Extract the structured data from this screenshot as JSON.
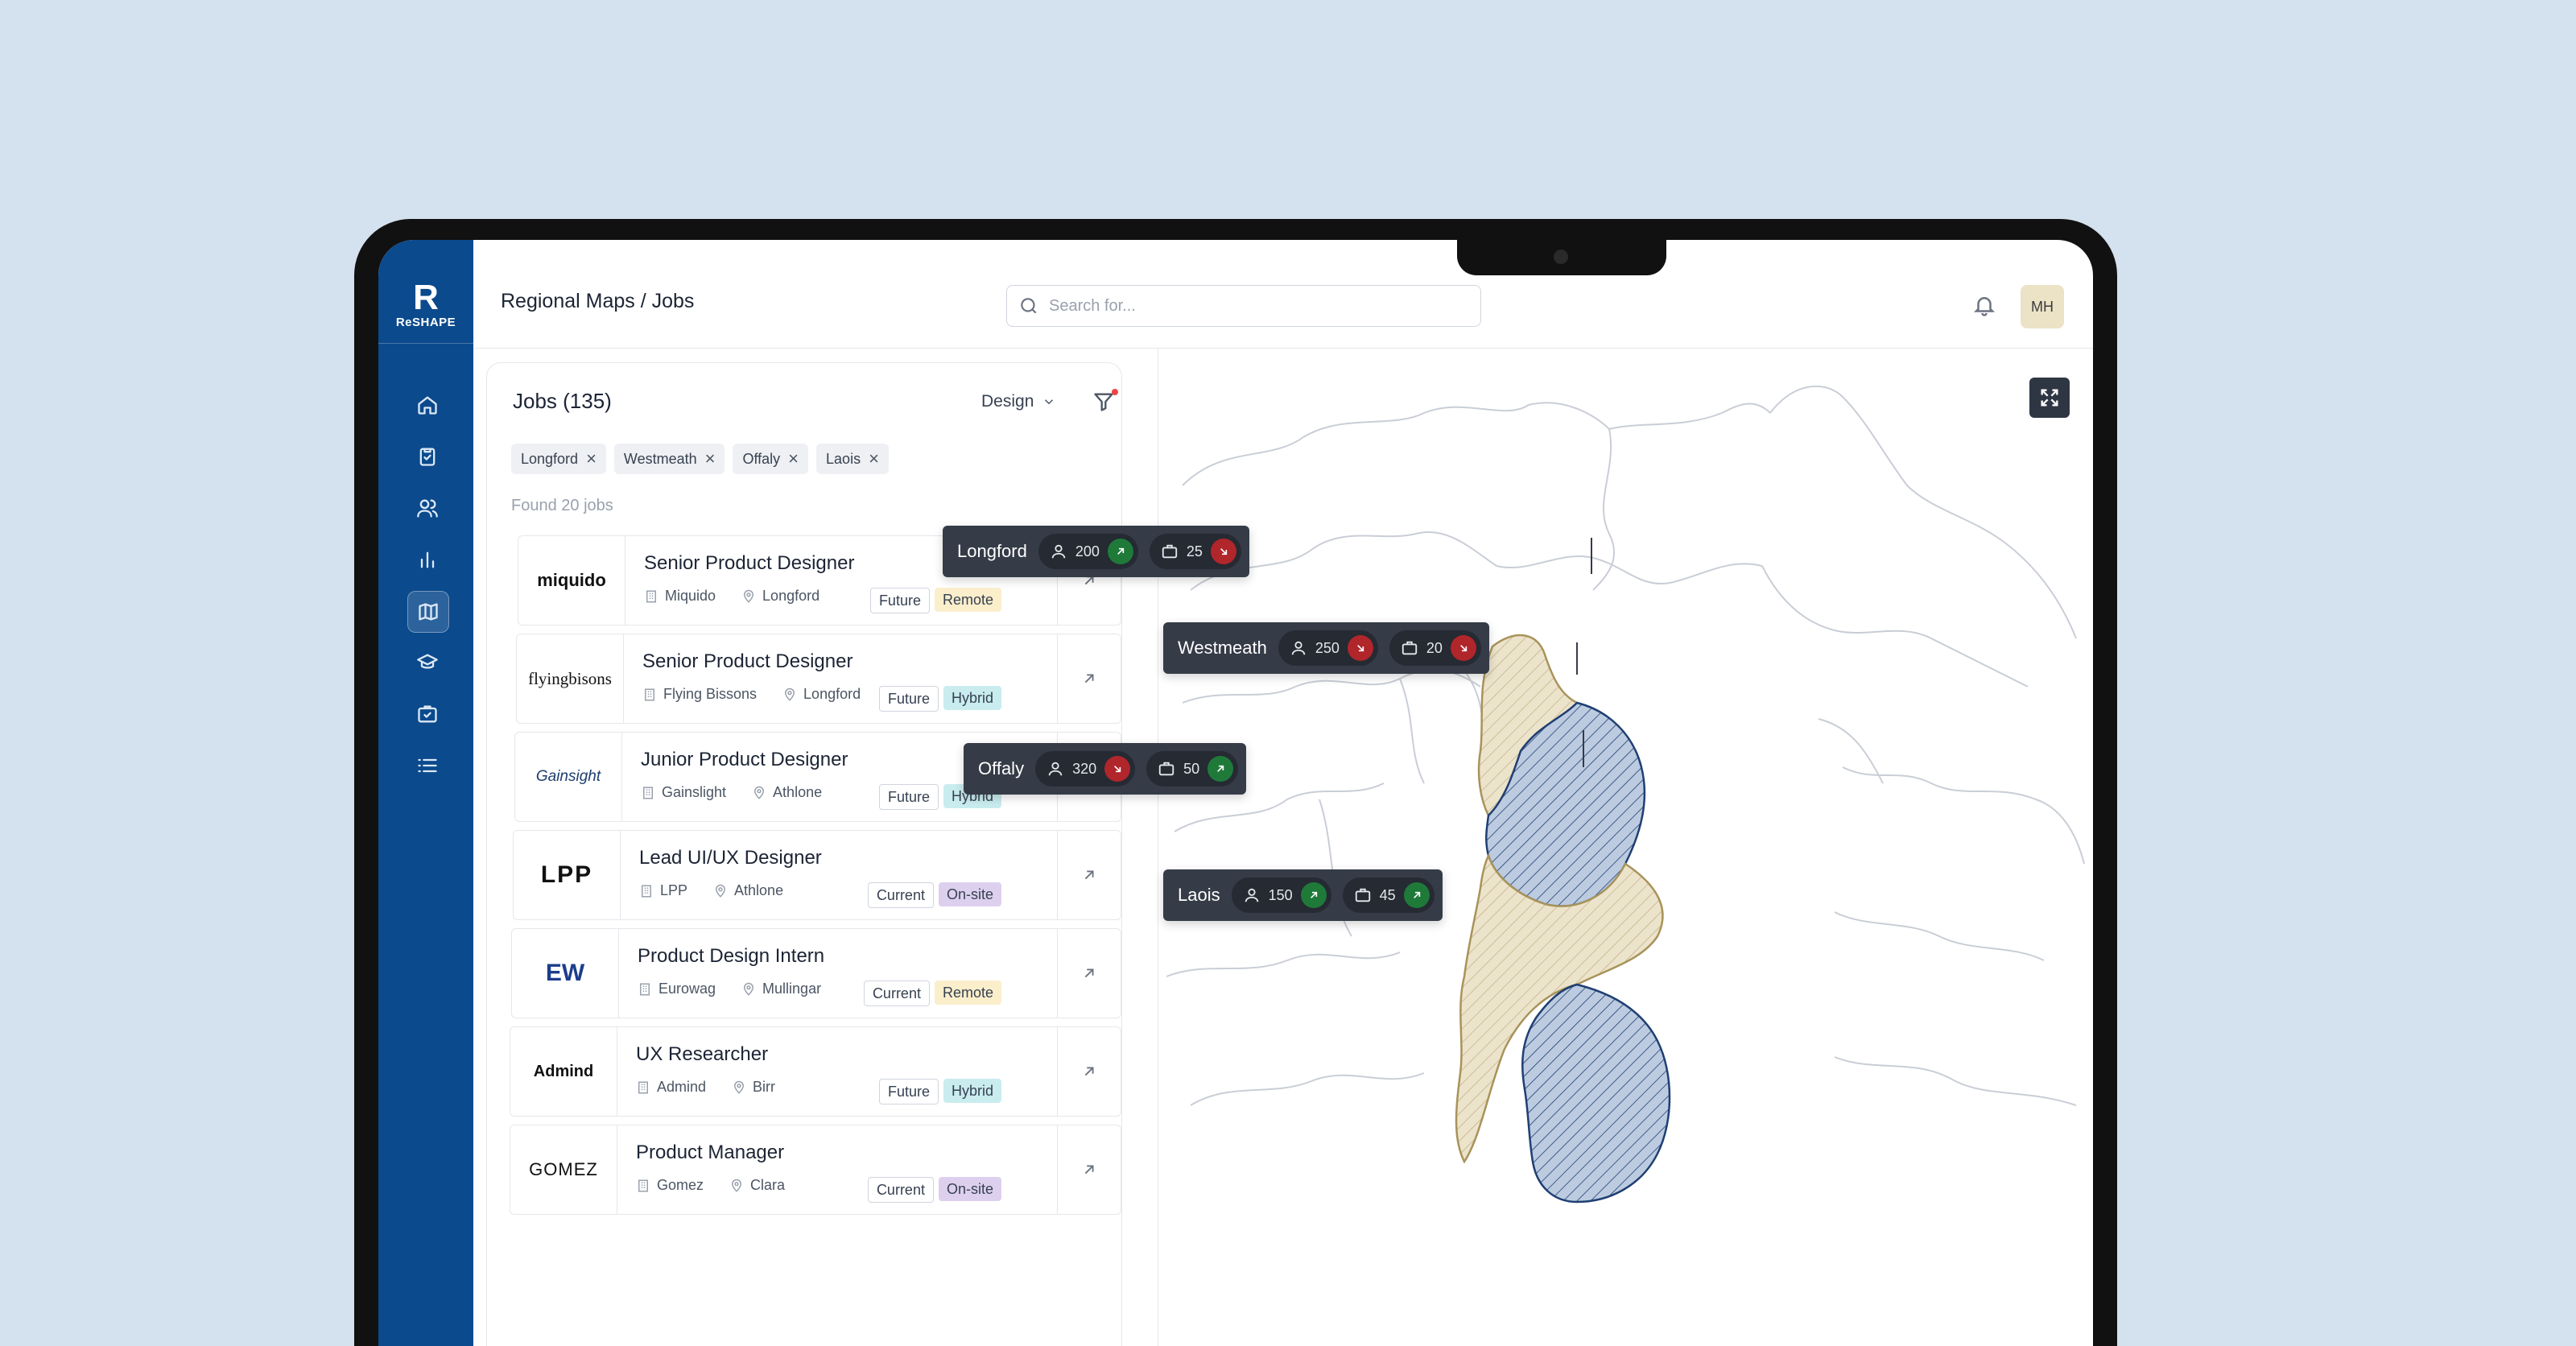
{
  "app": {
    "brand": "ReSHAPE",
    "title": "Regional Maps / Jobs",
    "search_placeholder": "Search for...",
    "user_initials": "MH"
  },
  "sidebar": {
    "items": [
      {
        "icon": "home-icon"
      },
      {
        "icon": "clipboard-check-icon"
      },
      {
        "icon": "users-icon"
      },
      {
        "icon": "bar-chart-icon"
      },
      {
        "icon": "map-icon",
        "active": true
      },
      {
        "icon": "graduation-cap-icon"
      },
      {
        "icon": "briefcase-check-icon"
      },
      {
        "icon": "list-icon"
      }
    ]
  },
  "jobs_panel": {
    "title": "Jobs (135)",
    "category": "Design",
    "filters": [
      "Longford",
      "Westmeath",
      "Offaly",
      "Laois"
    ],
    "found_text": "Found 20 jobs",
    "jobs": [
      {
        "company_logo": "miquido",
        "role": "Senior Product Designer",
        "company": "Miquido",
        "location": "Longford",
        "status": "Future",
        "mode": "Remote"
      },
      {
        "company_logo": "flyingbisons",
        "role": "Senior Product Designer",
        "company": "Flying Bissons",
        "location": "Longford",
        "status": "Future",
        "mode": "Hybrid"
      },
      {
        "company_logo": "Gainsight",
        "role": "Junior Product Designer",
        "company": "Gainslight",
        "location": "Athlone",
        "status": "Future",
        "mode": "Hybrid"
      },
      {
        "company_logo": "LPP",
        "role": "Lead UI/UX Designer",
        "company": "LPP",
        "location": "Athlone",
        "status": "Current",
        "mode": "On-site"
      },
      {
        "company_logo": "EW",
        "role": "Product Design Intern",
        "company": "Eurowag",
        "location": "Mullingar",
        "status": "Current",
        "mode": "Remote"
      },
      {
        "company_logo": "Admind",
        "role": "UX Researcher",
        "company": "Admind",
        "location": "Birr",
        "status": "Future",
        "mode": "Hybrid"
      },
      {
        "company_logo": "GOMEZ",
        "role": "Product Manager",
        "company": "Gomez",
        "location": "Clara",
        "status": "Current",
        "mode": "On-site"
      }
    ]
  },
  "map": {
    "highlight_colors": {
      "tan": "#e9dfc6",
      "blue": "#b8c9de"
    },
    "regions": [
      {
        "name": "Longford",
        "people": "200",
        "people_trend": "up",
        "jobs": "25",
        "jobs_trend": "down"
      },
      {
        "name": "Westmeath",
        "people": "250",
        "people_trend": "down",
        "jobs": "20",
        "jobs_trend": "down"
      },
      {
        "name": "Offaly",
        "people": "320",
        "people_trend": "down",
        "jobs": "50",
        "jobs_trend": "up"
      },
      {
        "name": "Laois",
        "people": "150",
        "people_trend": "up",
        "jobs": "45",
        "jobs_trend": "up"
      }
    ]
  }
}
